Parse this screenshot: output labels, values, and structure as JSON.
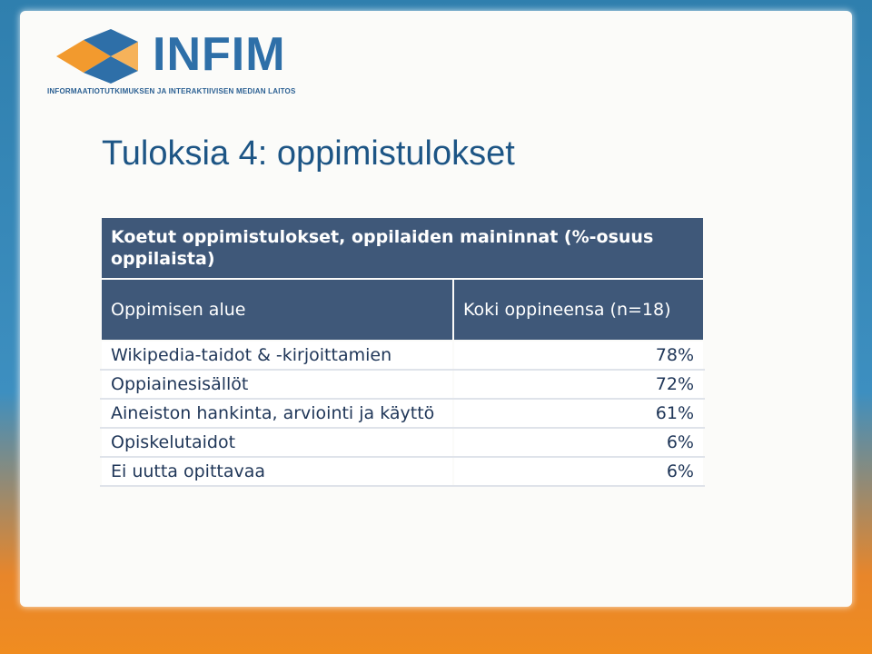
{
  "header": {
    "logo": "INFIM",
    "logo_subtitle": "INFORMAATIOTUTKIMUKSEN JA INTERAKTIIVISEN MEDIAN LAITOS",
    "title": "Tuloksia 4: oppimistulokset"
  },
  "table": {
    "caption": "Koetut oppimistulokset, oppilaiden maininnat (%-osuus oppilaista)",
    "columns": [
      "Oppimisen alue",
      "Koki oppineensa (n=18)"
    ],
    "rows": [
      [
        "Wikipedia-taidot & -kirjoittamien",
        "78%"
      ],
      [
        "Oppiainesisällöt",
        "72%"
      ],
      [
        "Aineiston hankinta, arviointi ja käyttö",
        "61%"
      ],
      [
        "Opiskelutaidot",
        "6%"
      ],
      [
        "Ei uutta opittavaa",
        "6%"
      ]
    ]
  }
}
